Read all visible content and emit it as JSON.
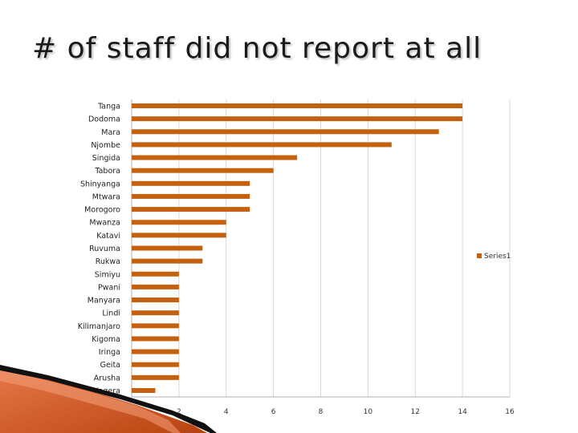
{
  "title": "# of staff did not report at all",
  "colors": {
    "bar": "#c5600f",
    "grid": "#d9d9d9",
    "axis": "#b0b0b0"
  },
  "chart_data": {
    "type": "bar",
    "orientation": "horizontal",
    "title": "",
    "xlabel": "",
    "ylabel": "",
    "xlim": [
      0,
      16
    ],
    "x_ticks": [
      0,
      2,
      4,
      6,
      8,
      10,
      12,
      14,
      16
    ],
    "grid": true,
    "legend_position": "right",
    "categories": [
      "Tanga",
      "Dodoma",
      "Mara",
      "Njombe",
      "Singida",
      "Tabora",
      "Shinyanga",
      "Mtwara",
      "Morogoro",
      "Mwanza",
      "Katavi",
      "Ruvuma",
      "Rukwa",
      "Simiyu",
      "Pwani",
      "Manyara",
      "Lindi",
      "Kilimanjaro",
      "Kigoma",
      "Iringa",
      "Geita",
      "Arusha",
      "Kagera"
    ],
    "series": [
      {
        "name": "Series1",
        "values": [
          14,
          14,
          13,
          11,
          7,
          6,
          5,
          5,
          5,
          4,
          4,
          3,
          3,
          2,
          2,
          2,
          2,
          2,
          2,
          2,
          2,
          2,
          1
        ]
      }
    ]
  }
}
